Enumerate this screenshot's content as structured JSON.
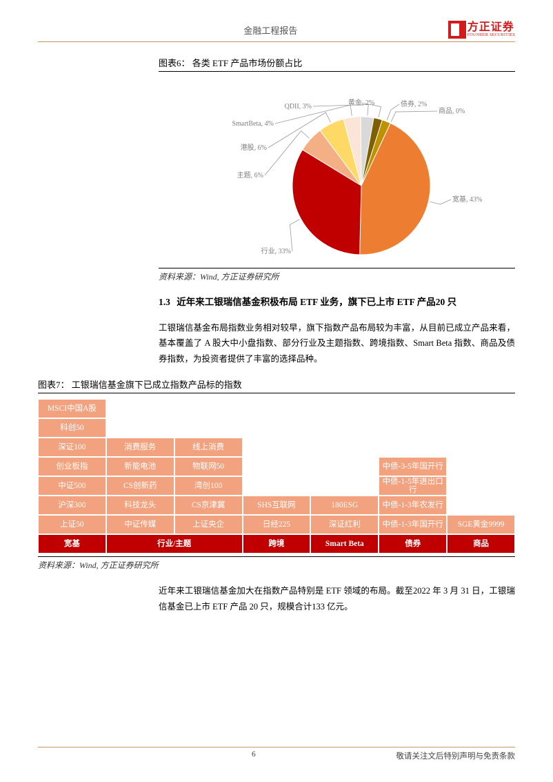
{
  "header": {
    "title": "金融工程报告",
    "logo_cn": "方正证券",
    "logo_en": "FOUNDER SECURITIES"
  },
  "chart6": {
    "title": "图表6：  各类 ETF 产品市场份额占比",
    "type": "pie",
    "slices": [
      {
        "label": "宽基",
        "value": 43,
        "display": "宽基, 43%",
        "color": "#ed7d31"
      },
      {
        "label": "行业",
        "value": 33,
        "display": "行业, 33%",
        "color": "#c00000"
      },
      {
        "label": "主题",
        "value": 6,
        "display": "主题, 6%",
        "color": "#f4b084"
      },
      {
        "label": "港股",
        "value": 6,
        "display": "港股, 6%",
        "color": "#ffd966"
      },
      {
        "label": "SmartBeta",
        "value": 4,
        "display": "SmartBeta, 4%",
        "color": "#fbe5d6"
      },
      {
        "label": "QDII",
        "value": 3,
        "display": "QDII, 3%",
        "color": "#d9d9d9"
      },
      {
        "label": "黄金",
        "value": 2,
        "display": "黄金, 2%",
        "color": "#7f6000"
      },
      {
        "label": "债券",
        "value": 2,
        "display": "债券, 2%",
        "color": "#bf9000"
      },
      {
        "label": "商品",
        "value": 0,
        "display": "商品, 0%",
        "color": "#c55a11"
      }
    ],
    "background_color": "#ffffff",
    "label_fontsize": 10,
    "label_color": "#7f7f7f",
    "source": "资料来源：Wind, 方正证券研究所"
  },
  "section13": {
    "heading_num": "1.3",
    "heading": "近年来工银瑞信基金积极布局 ETF 业务，旗下已上市 ETF 产品20 只",
    "body": "工银瑞信基金布局指数业务相对较早，旗下指数产品布局较为丰富，从目前已成立产品来看，基本覆盖了 A 股大中小盘指数、部分行业及主题指数、跨境指数、Smart Beta 指数、商品及债券指数，为投资者提供了丰富的选择品种。"
  },
  "table7": {
    "title": "图表7：  工银瑞信基金旗下已成立指数产品标的指数",
    "cell_color": "#f2a27e",
    "header_color": "#c00000",
    "text_color": "#ffffff",
    "fontsize": 11,
    "columns": [
      "宽基",
      "行业/主题",
      "行业/主题2",
      "跨境",
      "Smart Beta",
      "债券",
      "商品"
    ],
    "header_labels": [
      "宽基",
      "行业/主题",
      "跨境",
      "Smart Beta",
      "债券",
      "商品"
    ],
    "rows": [
      [
        "MSCI中国A股",
        "",
        "",
        "",
        "",
        "",
        ""
      ],
      [
        "科创50",
        "",
        "",
        "",
        "",
        "",
        ""
      ],
      [
        "深证100",
        "消费服务",
        "线上消费",
        "",
        "",
        "",
        ""
      ],
      [
        "创业板指",
        "新能电池",
        "物联网50",
        "",
        "",
        "中债-3-5年国开行",
        ""
      ],
      [
        "中证500",
        "CS创新药",
        "湾创100",
        "",
        "",
        "中债-1-5年进出口行",
        ""
      ],
      [
        "沪深300",
        "科技龙头",
        "CS京津冀",
        "SHS互联网",
        "180ESG",
        "中债-1-3年农发行",
        ""
      ],
      [
        "上证50",
        "中证传媒",
        "上证央企",
        "日经225",
        "深证红利",
        "中债-1-3年国开行",
        "SGE黄金9999"
      ]
    ],
    "source": "资料来源：Wind, 方正证券研究所",
    "body_after": "近年来工银瑞信基金加大在指数产品特别是 ETF 领域的布局。截至2022 年 3 月 31 日，工银瑞信基金已上市 ETF 产品 20 只，规模合计133 亿元。"
  },
  "footer": {
    "page": "6",
    "disclaimer": "敬请关注文后特别声明与免责条款"
  }
}
